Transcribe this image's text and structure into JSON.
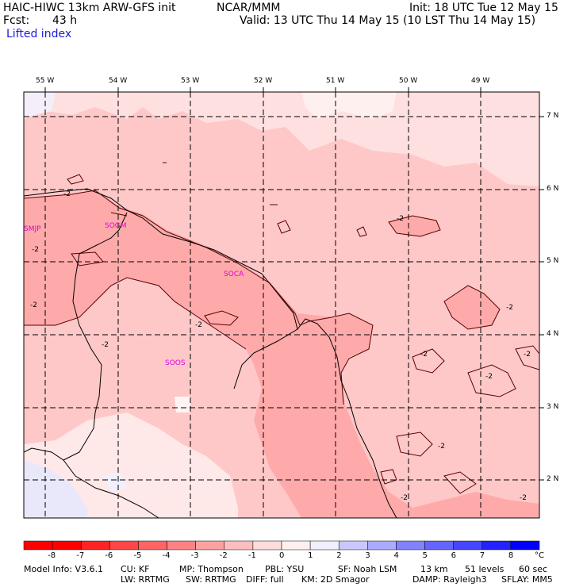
{
  "header": {
    "model": "HAIC-HIWC 13km ARW-GFS init",
    "org": "NCAR/MMM",
    "init": "Init: 18 UTC Tue 12 May 15",
    "fcst_label": "Fcst:",
    "fcst_value": "43 h",
    "valid": "Valid: 13 UTC Thu 14 May 15 (10 LST Thu 14 May 15)",
    "field": "Lifted index"
  },
  "map": {
    "lon_labels": [
      "55 W",
      "54 W",
      "53 W",
      "52 W",
      "51 W",
      "50 W",
      "49 W"
    ],
    "lat_labels": [
      "7 N",
      "6 N",
      "5 N",
      "4 N",
      "3 N",
      "2 N"
    ],
    "stations": [
      "SMJP",
      "SOCA",
      "SOOS",
      "SOGM"
    ],
    "contour_label": "-2"
  },
  "colorbar": {
    "ticks": [
      "-8",
      "-7",
      "-6",
      "-5",
      "-4",
      "-3",
      "-2",
      "-1",
      "0",
      "1",
      "2",
      "3",
      "4",
      "5",
      "6",
      "7",
      "8"
    ],
    "unit": "°C",
    "colors": [
      "#ff0000",
      "#ff2323",
      "#ff4646",
      "#ff6464",
      "#ff8282",
      "#ffa0a0",
      "#ffbebe",
      "#ffdcdc",
      "#fff0f0",
      "#f0f0ff",
      "#c8c8ff",
      "#aaaaff",
      "#8282ff",
      "#6464ff",
      "#4646ff",
      "#2323ff",
      "#0000ff"
    ]
  },
  "footer": {
    "line1": [
      "Model Info: V3.6.1",
      "CU: KF",
      "MP: Thompson",
      "PBL: YSU",
      "SF: Noah LSM",
      "13 km",
      "51 levels",
      "60 sec"
    ],
    "line2": [
      "LW: RRTMG",
      "SW: RRTMG",
      "DIFF: full",
      "KM: 2D Smagor",
      "DAMP: Rayleigh3",
      "SFLAY: MM5"
    ]
  }
}
